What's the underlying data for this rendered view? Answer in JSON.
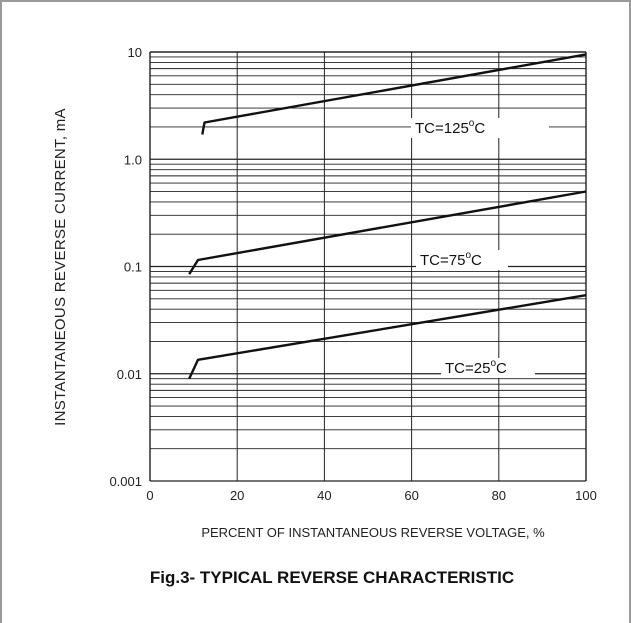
{
  "chart_data": {
    "type": "line",
    "title": "Fig.3- TYPICAL REVERSE CHARACTERISTIC",
    "xlabel": "PERCENT OF INSTANTANEOUS REVERSE VOLTAGE, %",
    "ylabel": "INSTANTANEOUS REVERSE CURRENT, mA",
    "xlim": [
      0,
      100
    ],
    "ylim": [
      0.001,
      10
    ],
    "y_scale": "log",
    "grid": true,
    "x_ticks": [
      "0",
      "20",
      "40",
      "60",
      "80",
      "100"
    ],
    "y_ticks": [
      "10",
      "1.0",
      "0.1",
      "0.01",
      "0.001"
    ],
    "series": [
      {
        "name": "TC=125",
        "label_main": "TC=125",
        "label_sup": "o",
        "label_unit": "C",
        "x": [
          12,
          12.5,
          100
        ],
        "y": [
          1.7,
          2.2,
          9.5
        ]
      },
      {
        "name": "TC=75",
        "label_main": "TC=75",
        "label_sup": "o",
        "label_unit": "C",
        "x": [
          9,
          11,
          100
        ],
        "y": [
          0.085,
          0.115,
          0.5
        ]
      },
      {
        "name": "TC=25",
        "label_main": "TC=25",
        "label_sup": "o",
        "label_unit": "C",
        "x": [
          9,
          11,
          100
        ],
        "y": [
          0.009,
          0.0135,
          0.054
        ]
      }
    ],
    "colors": {
      "line": "#111111",
      "grid": "#222222"
    }
  }
}
